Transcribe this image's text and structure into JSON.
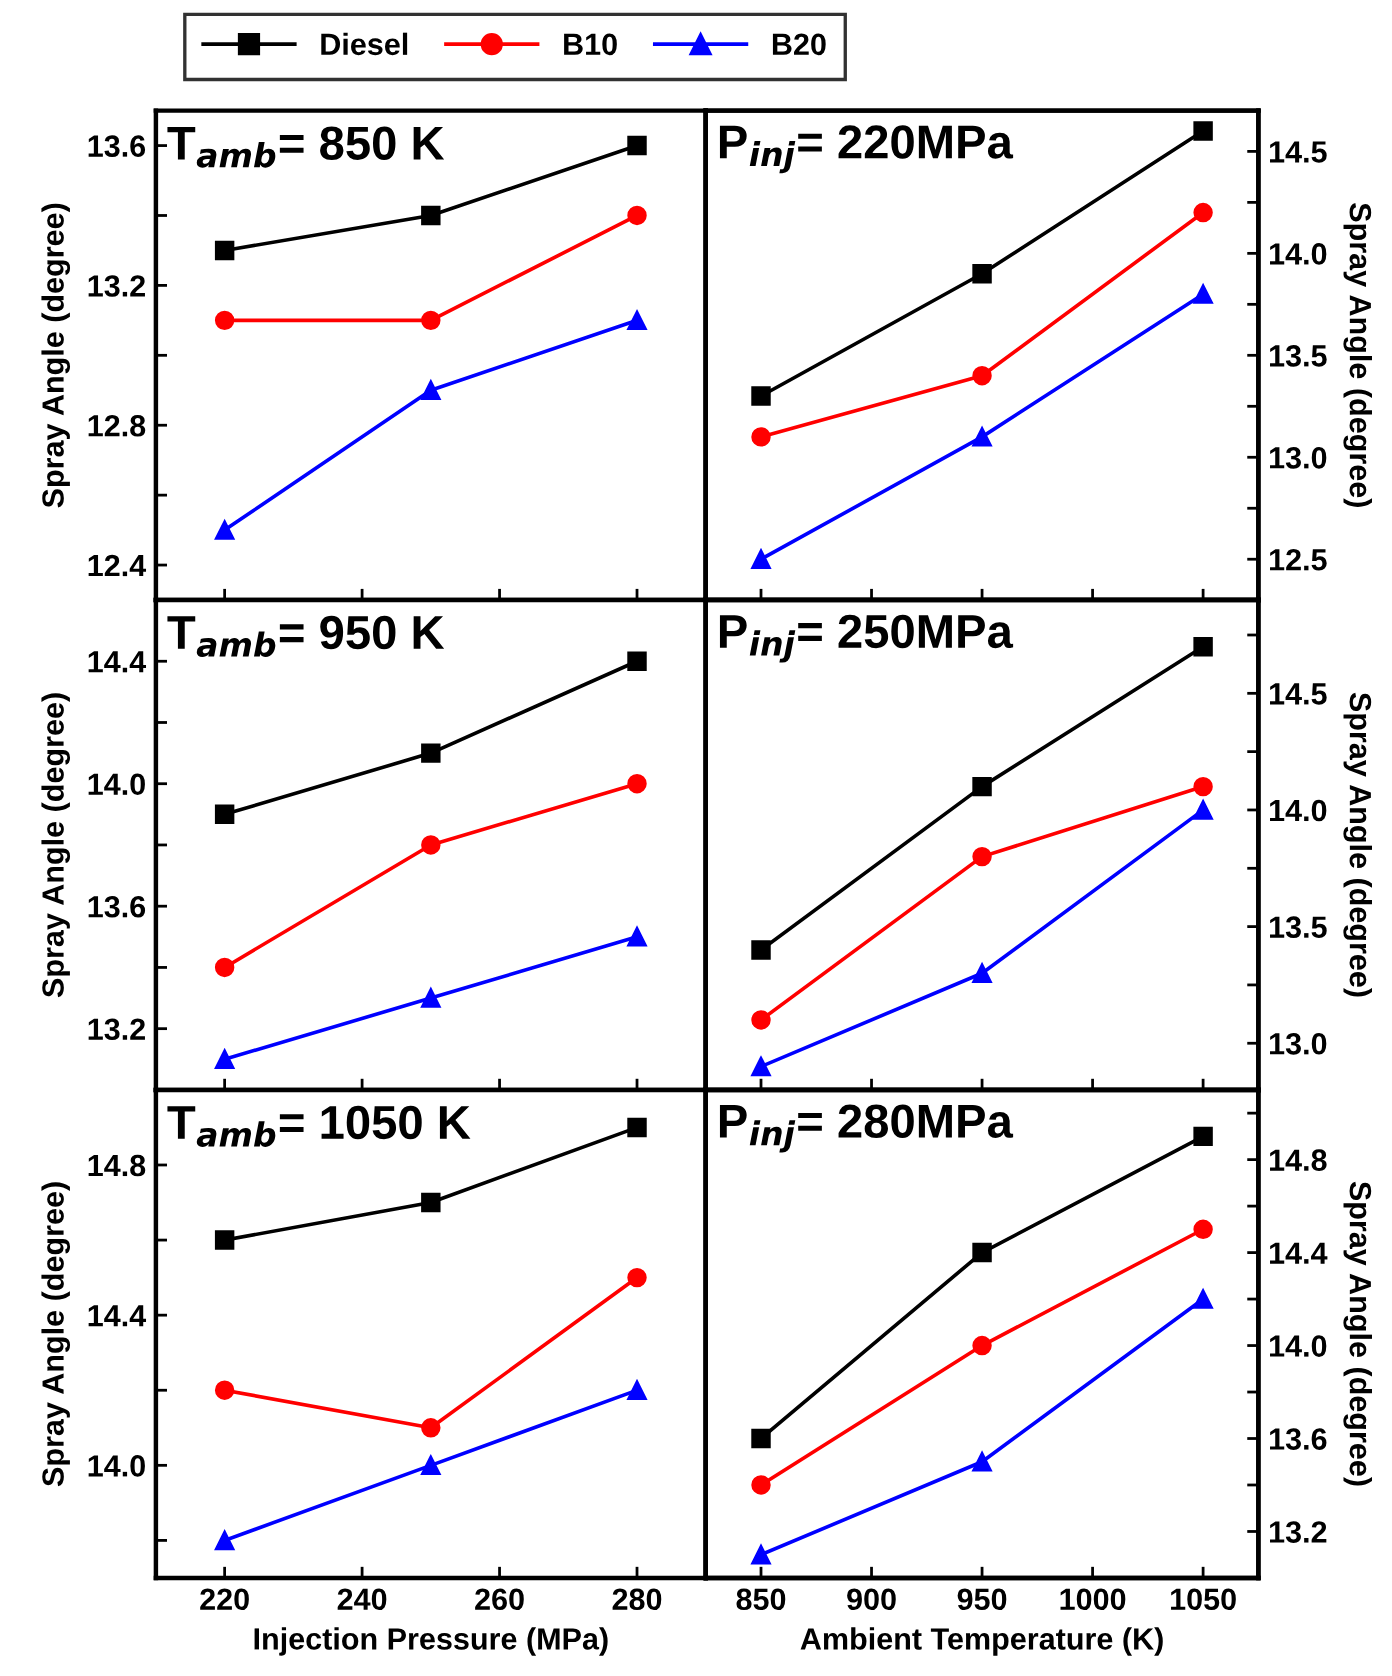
{
  "chart_data": [
    {
      "type": "line",
      "annotations": [
        "T$_{amb}$= 850 K"
      ],
      "ylabel": "Spray Angle (degree)",
      "x": [
        220,
        250,
        280
      ],
      "xlim": [
        210,
        290
      ],
      "xticks": [
        220,
        240,
        260,
        280
      ],
      "ylim": [
        12.3,
        13.7
      ],
      "yticks": [
        12.4,
        {
          "value": 12.6,
          "label": null
        },
        12.8,
        {
          "value": 13.0,
          "label": null
        },
        13.2,
        {
          "value": 13.4,
          "label": null
        },
        13.6
      ],
      "tick_labels": "y",
      "legend": "top",
      "line_style": "solid",
      "series": [
        {
          "name": "Diesel",
          "color": "#000000",
          "marker": "square",
          "values": [
            13.3,
            13.4,
            13.6
          ]
        },
        {
          "name": "B10",
          "color": "#ff0000",
          "marker": "circle",
          "values": [
            13.1,
            13.1,
            13.4
          ]
        },
        {
          "name": "B20",
          "color": "#0000ff",
          "marker": "triangle",
          "values": [
            12.5,
            12.9,
            13.1
          ]
        }
      ]
    },
    {
      "type": "line",
      "annotations": [
        "P$_{inj}$= 220MPa"
      ],
      "y2label": "Spray Angle (degree)",
      "x": [
        850,
        950,
        1050
      ],
      "xlim": [
        825,
        1075
      ],
      "xticks": [
        850,
        900,
        950,
        1000,
        1050
      ],
      "y2lim": [
        12.3,
        14.7
      ],
      "y2ticks": [
        12.5,
        {
          "value": 12.75,
          "label": null
        },
        "13.0",
        {
          "value": 13.25,
          "label": null
        },
        13.5,
        {
          "value": 13.75,
          "label": null
        },
        "14.0",
        {
          "value": 14.25,
          "label": null
        },
        14.5
      ],
      "tick_labels": "y",
      "line_style": "solid",
      "series": [
        {
          "color": "#000000",
          "marker": "square",
          "axis": "y2",
          "values": [
            13.3,
            13.9,
            14.6
          ]
        },
        {
          "color": "#ff0000",
          "marker": "circle",
          "axis": "y2",
          "values": [
            13.1,
            13.4,
            14.2
          ]
        },
        {
          "color": "#0000ff",
          "marker": "triangle",
          "axis": "y2",
          "values": [
            12.5,
            13.1,
            13.8
          ]
        }
      ]
    },
    {
      "type": "line",
      "annotations": [
        "T$_{amb}$= 950 K"
      ],
      "ylabel": "Spray Angle (degree)",
      "x": [
        220,
        250,
        280
      ],
      "xlim": [
        210,
        290
      ],
      "xticks": [
        220,
        240,
        260,
        280
      ],
      "ylim": [
        13.0,
        14.6
      ],
      "yticks": [
        13.2,
        {
          "value": 13.4,
          "label": null
        },
        13.6,
        {
          "value": 13.8,
          "label": null
        },
        "14.0",
        {
          "value": 14.2,
          "label": null
        },
        14.4
      ],
      "tick_labels": "y",
      "line_style": "solid",
      "series": [
        {
          "color": "#000000",
          "marker": "square",
          "values": [
            13.9,
            14.1,
            14.4
          ]
        },
        {
          "color": "#ff0000",
          "marker": "circle",
          "values": [
            13.4,
            13.8,
            14.0
          ]
        },
        {
          "color": "#0000ff",
          "marker": "triangle",
          "values": [
            13.1,
            13.3,
            13.5
          ]
        }
      ]
    },
    {
      "type": "line",
      "annotations": [
        "P$_{inj}$= 250MPa"
      ],
      "y2label": "Spray Angle (degree)",
      "x": [
        850,
        950,
        1050
      ],
      "xlim": [
        825,
        1075
      ],
      "xticks": [
        850,
        900,
        950,
        1000,
        1050
      ],
      "y2lim": [
        12.8,
        14.9
      ],
      "y2ticks": [
        "13.0",
        {
          "value": 13.25,
          "label": null
        },
        13.5,
        {
          "value": 13.75,
          "label": null
        },
        "14.0",
        {
          "value": 14.25,
          "label": null
        },
        14.5,
        {
          "value": 14.75,
          "label": null
        }
      ],
      "tick_labels": "y",
      "line_style": "solid",
      "series": [
        {
          "color": "#000000",
          "marker": "square",
          "axis": "y2",
          "values": [
            13.4,
            14.1,
            14.7
          ]
        },
        {
          "color": "#ff0000",
          "marker": "circle",
          "axis": "y2",
          "values": [
            13.1,
            13.8,
            14.1
          ]
        },
        {
          "color": "#0000ff",
          "marker": "triangle",
          "axis": "y2",
          "values": [
            12.9,
            13.3,
            14.0
          ]
        }
      ]
    },
    {
      "type": "line",
      "annotations": [
        "T$_{amb}$= 1050 K"
      ],
      "ylabel": "Spray Angle (degree)",
      "xlabel": "Injection Pressure (MPa)",
      "x": [
        220,
        250,
        280
      ],
      "xlim": [
        210,
        290
      ],
      "xticks": [
        220,
        240,
        260,
        280
      ],
      "ylim": [
        13.7,
        15.0
      ],
      "yticks": [
        {
          "value": 13.8,
          "label": null
        },
        "14.0",
        {
          "value": 14.2,
          "label": null
        },
        14.4,
        {
          "value": 14.6,
          "label": null
        },
        14.8
      ],
      "line_style": "solid",
      "series": [
        {
          "color": "#000000",
          "marker": "square",
          "values": [
            14.6,
            14.7,
            14.9
          ]
        },
        {
          "color": "#ff0000",
          "marker": "circle",
          "values": [
            14.2,
            14.1,
            14.5
          ]
        },
        {
          "color": "#0000ff",
          "marker": "triangle",
          "values": [
            13.8,
            14.0,
            14.2
          ]
        }
      ]
    },
    {
      "type": "line",
      "annotations": [
        "P$_{inj}$= 280MPa"
      ],
      "y2label": "Spray Angle (degree)",
      "xlabel": "Ambient Temperature (K)",
      "x": [
        850,
        950,
        1050
      ],
      "xlim": [
        825,
        1075
      ],
      "xticks": [
        850,
        900,
        950,
        1000,
        1050
      ],
      "y2lim": [
        13.0,
        15.1
      ],
      "y2ticks": [
        13.2,
        {
          "value": 13.4,
          "label": null
        },
        13.6,
        {
          "value": 13.8,
          "label": null
        },
        "14.0",
        {
          "value": 14.2,
          "label": null
        },
        14.4,
        {
          "value": 14.6,
          "label": null
        },
        14.8,
        {
          "value": 15.0,
          "label": null
        }
      ],
      "line_style": "solid",
      "series": [
        {
          "color": "#000000",
          "marker": "square",
          "axis": "y2",
          "values": [
            13.6,
            14.4,
            14.9
          ]
        },
        {
          "color": "#ff0000",
          "marker": "circle",
          "axis": "y2",
          "values": [
            13.4,
            14.0,
            14.5
          ]
        },
        {
          "color": "#0000ff",
          "marker": "triangle",
          "axis": "y2",
          "values": [
            13.1,
            13.5,
            14.2
          ]
        }
      ]
    }
  ]
}
